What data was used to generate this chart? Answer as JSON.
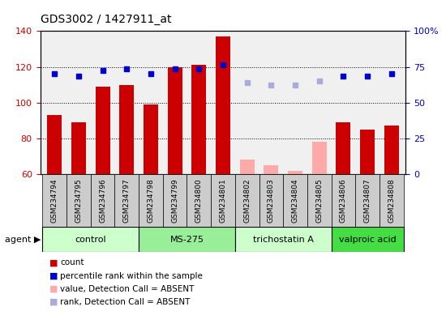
{
  "title": "GDS3002 / 1427911_at",
  "samples": [
    "GSM234794",
    "GSM234795",
    "GSM234796",
    "GSM234797",
    "GSM234798",
    "GSM234799",
    "GSM234800",
    "GSM234801",
    "GSM234802",
    "GSM234803",
    "GSM234804",
    "GSM234805",
    "GSM234806",
    "GSM234807",
    "GSM234808"
  ],
  "bar_values": [
    93,
    89,
    109,
    110,
    99,
    120,
    121,
    137,
    null,
    null,
    null,
    null,
    89,
    85,
    87
  ],
  "bar_absent_values": [
    null,
    null,
    null,
    null,
    null,
    null,
    null,
    null,
    68,
    65,
    62,
    78,
    null,
    null,
    null
  ],
  "rank_values": [
    116,
    115,
    118,
    119,
    116,
    119,
    119,
    121,
    null,
    null,
    null,
    null,
    115,
    115,
    116
  ],
  "rank_absent_values": [
    null,
    null,
    null,
    null,
    null,
    null,
    null,
    null,
    111,
    110,
    110,
    112,
    null,
    null,
    null
  ],
  "groups": [
    {
      "label": "control",
      "start": 0,
      "end": 3,
      "color": "#ccffcc"
    },
    {
      "label": "MS-275",
      "start": 4,
      "end": 7,
      "color": "#99ee99"
    },
    {
      "label": "trichostatin A",
      "start": 8,
      "end": 11,
      "color": "#ccffcc"
    },
    {
      "label": "valproic acid",
      "start": 12,
      "end": 14,
      "color": "#44dd44"
    }
  ],
  "bar_color": "#cc0000",
  "bar_absent_color": "#ffaaaa",
  "rank_color": "#0000cc",
  "rank_absent_color": "#aaaadd",
  "ylim_left": [
    60,
    140
  ],
  "ylim_right": [
    0,
    100
  ],
  "yticks_left": [
    60,
    80,
    100,
    120,
    140
  ],
  "yticks_right": [
    0,
    25,
    50,
    75,
    100
  ],
  "ytick_labels_right": [
    "0",
    "25",
    "50",
    "75",
    "100%"
  ],
  "tick_bg_color": "#cccccc",
  "plot_bg_color": "#f0f0f0",
  "legend_items": [
    {
      "color": "#cc0000",
      "label": "count"
    },
    {
      "color": "#0000cc",
      "label": "percentile rank within the sample"
    },
    {
      "color": "#ffaaaa",
      "label": "value, Detection Call = ABSENT"
    },
    {
      "color": "#aaaadd",
      "label": "rank, Detection Call = ABSENT"
    }
  ]
}
